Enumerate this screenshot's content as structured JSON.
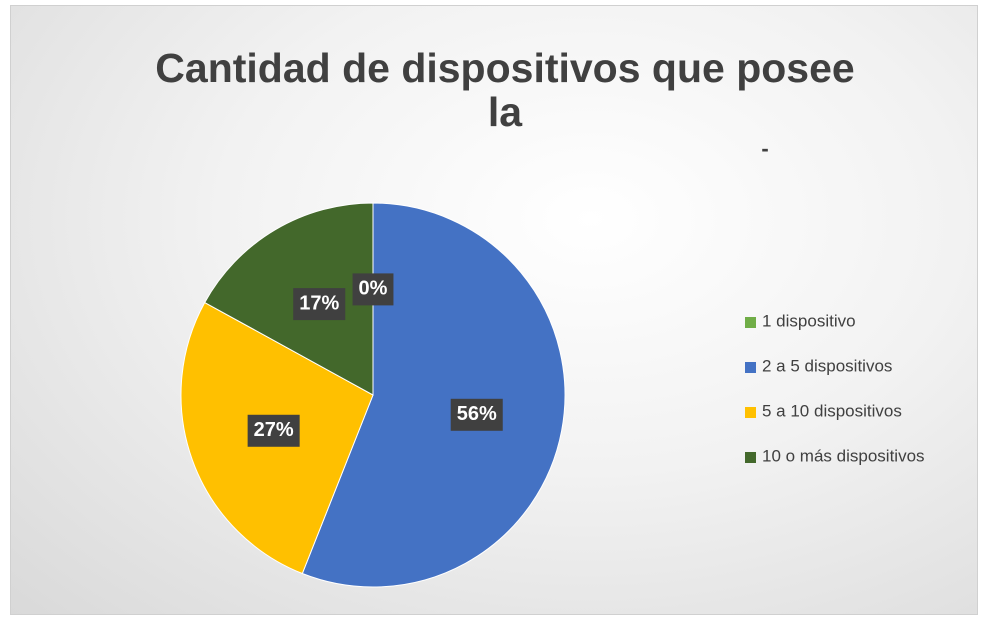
{
  "chart_data": {
    "type": "pie",
    "title": "Cantidad de dispositivos que posee la",
    "annotations": [
      "-"
    ],
    "categories": [
      "1 dispositivo",
      "2 a 5 dispositivos",
      "5 a 10 dispositivos",
      "10  o más dispositivos"
    ],
    "values": [
      0,
      56,
      27,
      17
    ],
    "value_labels": [
      "0%",
      "56%",
      "27%",
      "17%"
    ],
    "colors": [
      "#70ad47",
      "#4472c4",
      "#ffc000",
      "#43682b"
    ],
    "legend": "right"
  }
}
